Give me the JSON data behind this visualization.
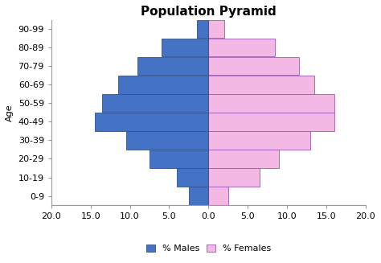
{
  "title": "Population Pyramid",
  "age_groups": [
    "0-9",
    "10-19",
    "20-29",
    "30-39",
    "40-49",
    "50-59",
    "60-69",
    "70-79",
    "80-89",
    "90-99"
  ],
  "males": [
    2.5,
    4.0,
    7.5,
    10.5,
    14.5,
    13.5,
    11.5,
    9.0,
    6.0,
    1.5
  ],
  "females": [
    2.5,
    6.5,
    9.0,
    13.0,
    16.0,
    16.0,
    13.5,
    11.5,
    8.5,
    2.0
  ],
  "male_color": "#4472C4",
  "female_color": "#F4B8E4",
  "male_edge_color": "#2F528F",
  "female_edge_color": "#9B59B6",
  "xlim": [
    -20,
    20
  ],
  "xticks": [
    -20,
    -15,
    -10,
    -5,
    0,
    5,
    10,
    15,
    20
  ],
  "xtick_labels": [
    "20.0",
    "15.0",
    "10.0",
    "5.0",
    "0.0",
    "5.0",
    "10.0",
    "15.0",
    "20.0"
  ],
  "ylabel": "Age",
  "background_color": "#ffffff",
  "title_fontsize": 11,
  "axis_fontsize": 8,
  "tick_fontsize": 8,
  "legend_labels": [
    "% Males",
    "% Females"
  ],
  "bar_height": 0.98
}
